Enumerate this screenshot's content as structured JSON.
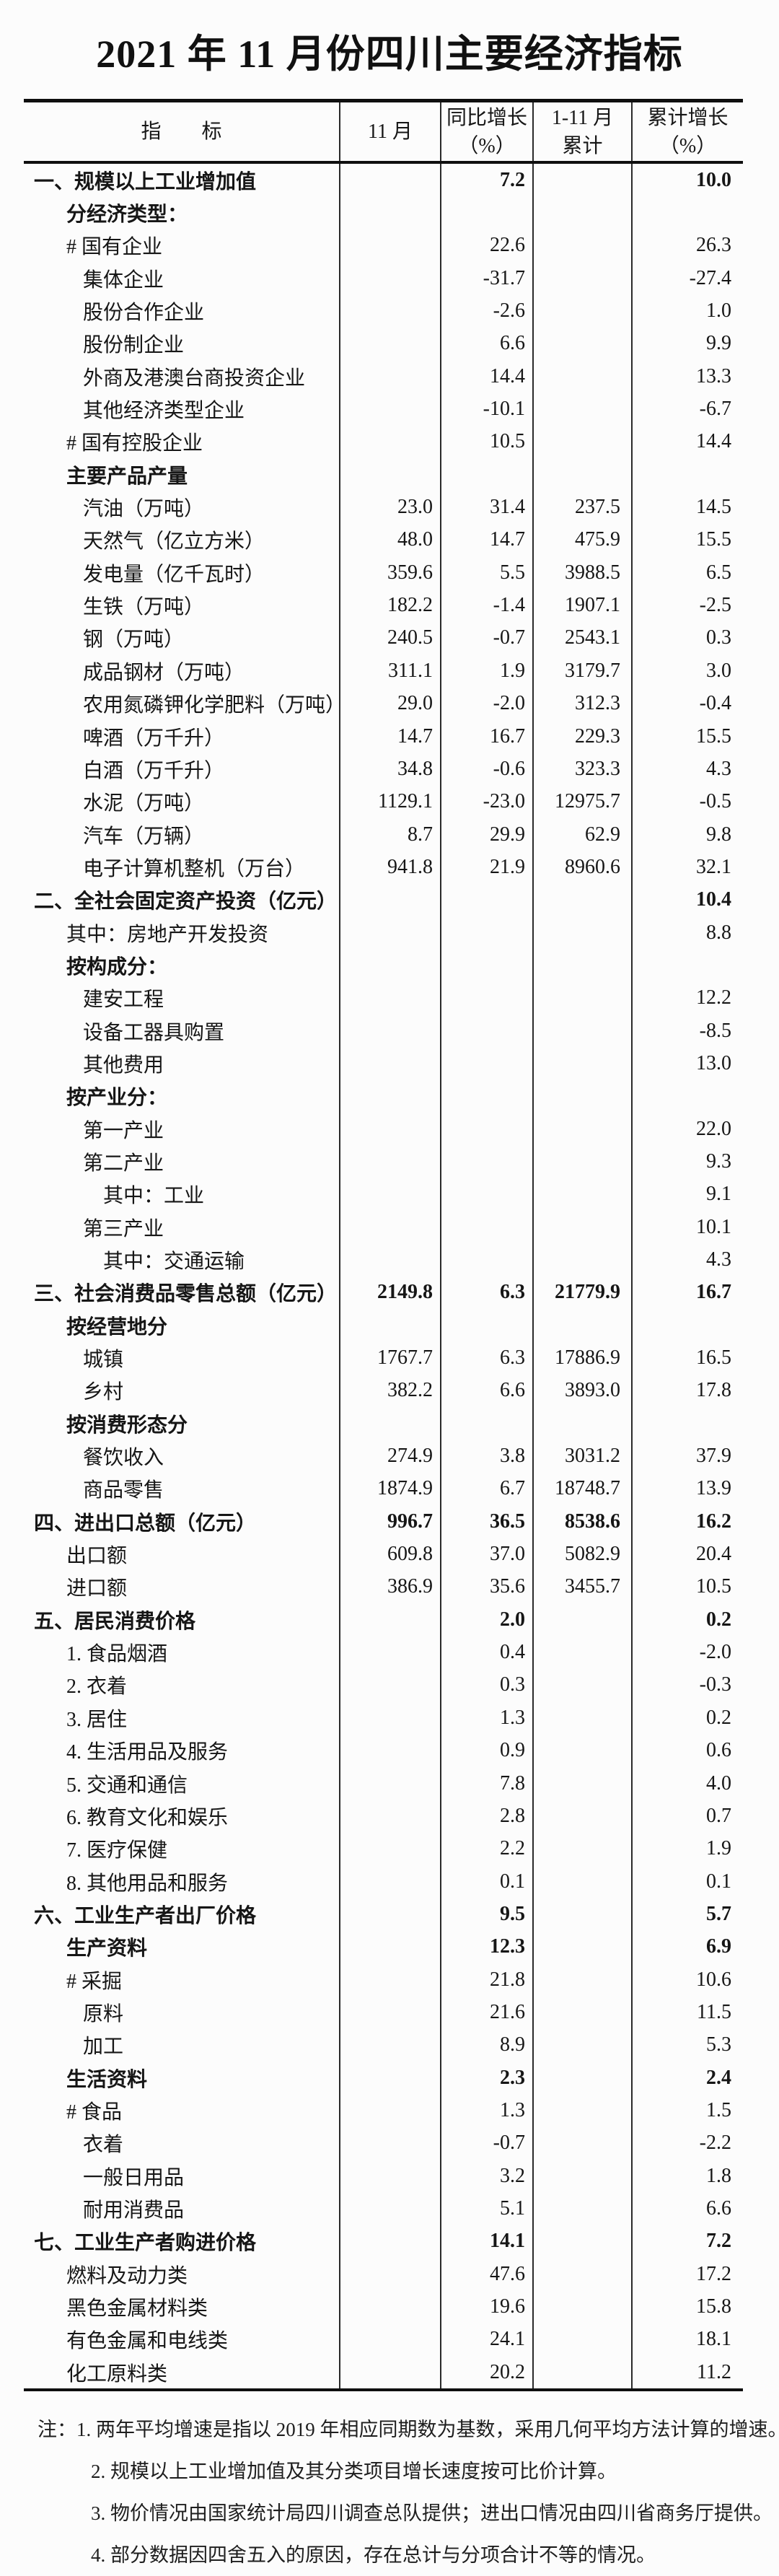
{
  "title": "2021 年 11 月份四川主要经济指标",
  "table": {
    "headers": {
      "indicator": "指　　标",
      "month": "11 月",
      "yoy_line1": "同比增长",
      "yoy_line2": "（%）",
      "cum_line1": "1-11 月",
      "cum_line2": "累计",
      "cumg_line1": "累计增长",
      "cumg_line2": "（%）"
    },
    "rows": [
      {
        "label": "一、规模以上工业增加值",
        "indent": 0,
        "bold": true,
        "m11": "",
        "yoy": "7.2",
        "cum": "",
        "cumg": "10.0"
      },
      {
        "label": "分经济类型：",
        "indent": 1,
        "bold": true,
        "m11": "",
        "yoy": "",
        "cum": "",
        "cumg": ""
      },
      {
        "label": "# 国有企业",
        "indent": 1,
        "bold": false,
        "m11": "",
        "yoy": "22.6",
        "cum": "",
        "cumg": "26.3"
      },
      {
        "label": "集体企业",
        "indent": 2,
        "bold": false,
        "m11": "",
        "yoy": "-31.7",
        "cum": "",
        "cumg": "-27.4"
      },
      {
        "label": "股份合作企业",
        "indent": 2,
        "bold": false,
        "m11": "",
        "yoy": "-2.6",
        "cum": "",
        "cumg": "1.0"
      },
      {
        "label": "股份制企业",
        "indent": 2,
        "bold": false,
        "m11": "",
        "yoy": "6.6",
        "cum": "",
        "cumg": "9.9"
      },
      {
        "label": "外商及港澳台商投资企业",
        "indent": 2,
        "bold": false,
        "m11": "",
        "yoy": "14.4",
        "cum": "",
        "cumg": "13.3"
      },
      {
        "label": "其他经济类型企业",
        "indent": 2,
        "bold": false,
        "m11": "",
        "yoy": "-10.1",
        "cum": "",
        "cumg": "-6.7"
      },
      {
        "label": "# 国有控股企业",
        "indent": 1,
        "bold": false,
        "m11": "",
        "yoy": "10.5",
        "cum": "",
        "cumg": "14.4"
      },
      {
        "label": "主要产品产量",
        "indent": 1,
        "bold": true,
        "m11": "",
        "yoy": "",
        "cum": "",
        "cumg": ""
      },
      {
        "label": "汽油（万吨）",
        "indent": 2,
        "bold": false,
        "m11": "23.0",
        "yoy": "31.4",
        "cum": "237.5",
        "cumg": "14.5"
      },
      {
        "label": "天然气（亿立方米）",
        "indent": 2,
        "bold": false,
        "m11": "48.0",
        "yoy": "14.7",
        "cum": "475.9",
        "cumg": "15.5"
      },
      {
        "label": "发电量（亿千瓦时）",
        "indent": 2,
        "bold": false,
        "m11": "359.6",
        "yoy": "5.5",
        "cum": "3988.5",
        "cumg": "6.5"
      },
      {
        "label": "生铁（万吨）",
        "indent": 2,
        "bold": false,
        "m11": "182.2",
        "yoy": "-1.4",
        "cum": "1907.1",
        "cumg": "-2.5"
      },
      {
        "label": "钢（万吨）",
        "indent": 2,
        "bold": false,
        "m11": "240.5",
        "yoy": "-0.7",
        "cum": "2543.1",
        "cumg": "0.3"
      },
      {
        "label": "成品钢材（万吨）",
        "indent": 2,
        "bold": false,
        "m11": "311.1",
        "yoy": "1.9",
        "cum": "3179.7",
        "cumg": "3.0"
      },
      {
        "label": "农用氮磷钾化学肥料（万吨）",
        "indent": 2,
        "bold": false,
        "m11": "29.0",
        "yoy": "-2.0",
        "cum": "312.3",
        "cumg": "-0.4"
      },
      {
        "label": "啤酒（万千升）",
        "indent": 2,
        "bold": false,
        "m11": "14.7",
        "yoy": "16.7",
        "cum": "229.3",
        "cumg": "15.5"
      },
      {
        "label": "白酒（万千升）",
        "indent": 2,
        "bold": false,
        "m11": "34.8",
        "yoy": "-0.6",
        "cum": "323.3",
        "cumg": "4.3"
      },
      {
        "label": "水泥（万吨）",
        "indent": 2,
        "bold": false,
        "m11": "1129.1",
        "yoy": "-23.0",
        "cum": "12975.7",
        "cumg": "-0.5"
      },
      {
        "label": "汽车（万辆）",
        "indent": 2,
        "bold": false,
        "m11": "8.7",
        "yoy": "29.9",
        "cum": "62.9",
        "cumg": "9.8"
      },
      {
        "label": "电子计算机整机（万台）",
        "indent": 2,
        "bold": false,
        "m11": "941.8",
        "yoy": "21.9",
        "cum": "8960.6",
        "cumg": "32.1"
      },
      {
        "label": "二、全社会固定资产投资（亿元）",
        "indent": 0,
        "bold": true,
        "m11": "",
        "yoy": "",
        "cum": "",
        "cumg": "10.4"
      },
      {
        "label": "其中：房地产开发投资",
        "indent": 1,
        "bold": false,
        "m11": "",
        "yoy": "",
        "cum": "",
        "cumg": "8.8"
      },
      {
        "label": "按构成分：",
        "indent": 1,
        "bold": true,
        "m11": "",
        "yoy": "",
        "cum": "",
        "cumg": ""
      },
      {
        "label": "建安工程",
        "indent": 2,
        "bold": false,
        "m11": "",
        "yoy": "",
        "cum": "",
        "cumg": "12.2"
      },
      {
        "label": "设备工器具购置",
        "indent": 2,
        "bold": false,
        "m11": "",
        "yoy": "",
        "cum": "",
        "cumg": "-8.5"
      },
      {
        "label": "其他费用",
        "indent": 2,
        "bold": false,
        "m11": "",
        "yoy": "",
        "cum": "",
        "cumg": "13.0"
      },
      {
        "label": "按产业分：",
        "indent": 1,
        "bold": true,
        "m11": "",
        "yoy": "",
        "cum": "",
        "cumg": ""
      },
      {
        "label": "第一产业",
        "indent": 2,
        "bold": false,
        "m11": "",
        "yoy": "",
        "cum": "",
        "cumg": "22.0"
      },
      {
        "label": "第二产业",
        "indent": 2,
        "bold": false,
        "m11": "",
        "yoy": "",
        "cum": "",
        "cumg": "9.3"
      },
      {
        "label": "其中：工业",
        "indent": 3,
        "bold": false,
        "m11": "",
        "yoy": "",
        "cum": "",
        "cumg": "9.1"
      },
      {
        "label": "第三产业",
        "indent": 2,
        "bold": false,
        "m11": "",
        "yoy": "",
        "cum": "",
        "cumg": "10.1"
      },
      {
        "label": "其中：交通运输",
        "indent": 3,
        "bold": false,
        "m11": "",
        "yoy": "",
        "cum": "",
        "cumg": "4.3"
      },
      {
        "label": "三、社会消费品零售总额（亿元）",
        "indent": 0,
        "bold": true,
        "m11": "2149.8",
        "yoy": "6.3",
        "cum": "21779.9",
        "cumg": "16.7"
      },
      {
        "label": "按经营地分",
        "indent": 1,
        "bold": true,
        "m11": "",
        "yoy": "",
        "cum": "",
        "cumg": ""
      },
      {
        "label": "城镇",
        "indent": 2,
        "bold": false,
        "m11": "1767.7",
        "yoy": "6.3",
        "cum": "17886.9",
        "cumg": "16.5"
      },
      {
        "label": "乡村",
        "indent": 2,
        "bold": false,
        "m11": "382.2",
        "yoy": "6.6",
        "cum": "3893.0",
        "cumg": "17.8"
      },
      {
        "label": "按消费形态分",
        "indent": 1,
        "bold": true,
        "m11": "",
        "yoy": "",
        "cum": "",
        "cumg": ""
      },
      {
        "label": "餐饮收入",
        "indent": 2,
        "bold": false,
        "m11": "274.9",
        "yoy": "3.8",
        "cum": "3031.2",
        "cumg": "37.9"
      },
      {
        "label": "商品零售",
        "indent": 2,
        "bold": false,
        "m11": "1874.9",
        "yoy": "6.7",
        "cum": "18748.7",
        "cumg": "13.9"
      },
      {
        "label": "四、进出口总额（亿元）",
        "indent": 0,
        "bold": true,
        "m11": "996.7",
        "yoy": "36.5",
        "cum": "8538.6",
        "cumg": "16.2"
      },
      {
        "label": "出口额",
        "indent": 1,
        "bold": false,
        "m11": "609.8",
        "yoy": "37.0",
        "cum": "5082.9",
        "cumg": "20.4"
      },
      {
        "label": "进口额",
        "indent": 1,
        "bold": false,
        "m11": "386.9",
        "yoy": "35.6",
        "cum": "3455.7",
        "cumg": "10.5"
      },
      {
        "label": "五、居民消费价格",
        "indent": 0,
        "bold": true,
        "m11": "",
        "yoy": "2.0",
        "cum": "",
        "cumg": "0.2"
      },
      {
        "label": "1. 食品烟酒",
        "indent": 1,
        "bold": false,
        "m11": "",
        "yoy": "0.4",
        "cum": "",
        "cumg": "-2.0"
      },
      {
        "label": "2. 衣着",
        "indent": 1,
        "bold": false,
        "m11": "",
        "yoy": "0.3",
        "cum": "",
        "cumg": "-0.3"
      },
      {
        "label": "3. 居住",
        "indent": 1,
        "bold": false,
        "m11": "",
        "yoy": "1.3",
        "cum": "",
        "cumg": "0.2"
      },
      {
        "label": "4. 生活用品及服务",
        "indent": 1,
        "bold": false,
        "m11": "",
        "yoy": "0.9",
        "cum": "",
        "cumg": "0.6"
      },
      {
        "label": "5. 交通和通信",
        "indent": 1,
        "bold": false,
        "m11": "",
        "yoy": "7.8",
        "cum": "",
        "cumg": "4.0"
      },
      {
        "label": "6. 教育文化和娱乐",
        "indent": 1,
        "bold": false,
        "m11": "",
        "yoy": "2.8",
        "cum": "",
        "cumg": "0.7"
      },
      {
        "label": "7. 医疗保健",
        "indent": 1,
        "bold": false,
        "m11": "",
        "yoy": "2.2",
        "cum": "",
        "cumg": "1.9"
      },
      {
        "label": "8. 其他用品和服务",
        "indent": 1,
        "bold": false,
        "m11": "",
        "yoy": "0.1",
        "cum": "",
        "cumg": "0.1"
      },
      {
        "label": "六、工业生产者出厂价格",
        "indent": 0,
        "bold": true,
        "m11": "",
        "yoy": "9.5",
        "cum": "",
        "cumg": "5.7"
      },
      {
        "label": "生产资料",
        "indent": 1,
        "bold": true,
        "m11": "",
        "yoy": "12.3",
        "cum": "",
        "cumg": "6.9"
      },
      {
        "label": "# 采掘",
        "indent": 1,
        "bold": false,
        "m11": "",
        "yoy": "21.8",
        "cum": "",
        "cumg": "10.6"
      },
      {
        "label": "原料",
        "indent": 2,
        "bold": false,
        "m11": "",
        "yoy": "21.6",
        "cum": "",
        "cumg": "11.5"
      },
      {
        "label": "加工",
        "indent": 2,
        "bold": false,
        "m11": "",
        "yoy": "8.9",
        "cum": "",
        "cumg": "5.3"
      },
      {
        "label": "生活资料",
        "indent": 1,
        "bold": true,
        "m11": "",
        "yoy": "2.3",
        "cum": "",
        "cumg": "2.4"
      },
      {
        "label": "# 食品",
        "indent": 1,
        "bold": false,
        "m11": "",
        "yoy": "1.3",
        "cum": "",
        "cumg": "1.5"
      },
      {
        "label": "衣着",
        "indent": 2,
        "bold": false,
        "m11": "",
        "yoy": "-0.7",
        "cum": "",
        "cumg": "-2.2"
      },
      {
        "label": "一般日用品",
        "indent": 2,
        "bold": false,
        "m11": "",
        "yoy": "3.2",
        "cum": "",
        "cumg": "1.8"
      },
      {
        "label": "耐用消费品",
        "indent": 2,
        "bold": false,
        "m11": "",
        "yoy": "5.1",
        "cum": "",
        "cumg": "6.6"
      },
      {
        "label": "七、工业生产者购进价格",
        "indent": 0,
        "bold": true,
        "m11": "",
        "yoy": "14.1",
        "cum": "",
        "cumg": "7.2"
      },
      {
        "label": "燃料及动力类",
        "indent": 1,
        "bold": false,
        "m11": "",
        "yoy": "47.6",
        "cum": "",
        "cumg": "17.2"
      },
      {
        "label": "黑色金属材料类",
        "indent": 1,
        "bold": false,
        "m11": "",
        "yoy": "19.6",
        "cum": "",
        "cumg": "15.8"
      },
      {
        "label": "有色金属和电线类",
        "indent": 1,
        "bold": false,
        "m11": "",
        "yoy": "24.1",
        "cum": "",
        "cumg": "18.1"
      },
      {
        "label": "化工原料类",
        "indent": 1,
        "bold": false,
        "m11": "",
        "yoy": "20.2",
        "cum": "",
        "cumg": "11.2"
      }
    ]
  },
  "notes": [
    "注：1. 两年平均增速是指以 2019 年相应同期数为基数，采用几何平均方法计算的增速。",
    "2. 规模以上工业增加值及其分类项目增长速度按可比价计算。",
    "3. 物价情况由国家统计局四川调查总队提供；进出口情况由四川省商务厅提供。",
    "4. 部分数据因四舍五入的原因，存在总计与分项合计不等的情况。"
  ]
}
